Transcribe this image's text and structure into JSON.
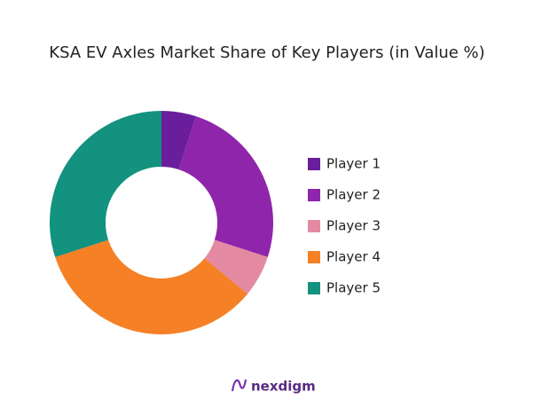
{
  "chart_data": {
    "type": "donut",
    "title": "KSA EV Axles Market Share of Key Players (in Value %)",
    "categories": [
      "Player 1",
      "Player 2",
      "Player 3",
      "Player 4",
      "Player 5"
    ],
    "values": [
      5,
      25,
      6,
      34,
      30
    ],
    "colors": [
      "#6a1e9c",
      "#8f25ab",
      "#e38aa2",
      "#f58025",
      "#12927f"
    ],
    "legend": "right"
  },
  "footer": {
    "logo": "nexdigm"
  }
}
